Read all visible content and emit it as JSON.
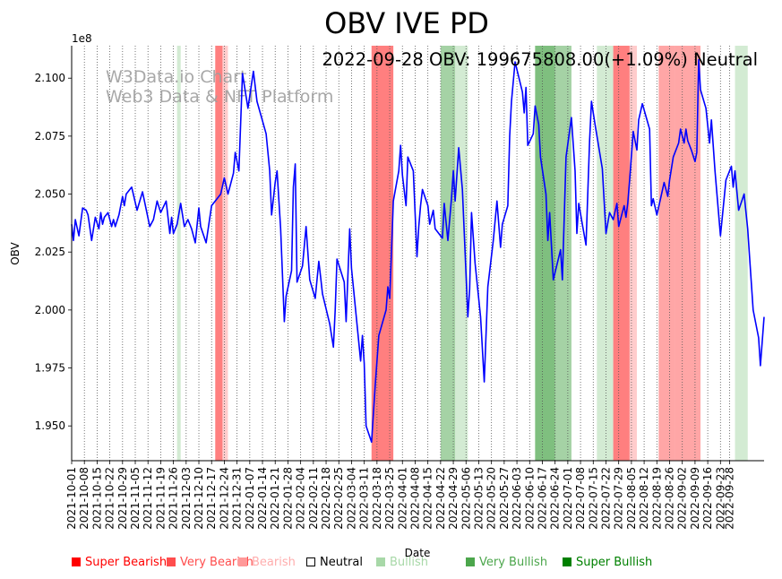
{
  "chart_data": {
    "type": "line",
    "title": "OBV IVE PD",
    "annotation": "2022-09-28 OBV: 199675808.00(+1.09%) Neutral",
    "watermark": [
      "W3Data.io Chart",
      "Web3 Data & NFT Platform"
    ],
    "xlabel": "Date",
    "ylabel": "OBV",
    "y_multiplier_label": "1e8",
    "ylim": [
      1.935,
      2.114
    ],
    "yticks": [
      1.95,
      1.975,
      2.0,
      2.025,
      2.05,
      2.075,
      2.1
    ],
    "ytick_labels": [
      "1.950",
      "1.975",
      "2.000",
      "2.025",
      "2.050",
      "2.075",
      "2.100"
    ],
    "x_start": "2021-10-01",
    "x_end": "2022-09-28",
    "x_tick_labels": [
      "2021-10-01",
      "2021-10-08",
      "2021-10-15",
      "2021-10-22",
      "2021-10-29",
      "2021-11-05",
      "2021-11-12",
      "2021-11-19",
      "2021-11-26",
      "2021-12-03",
      "2021-12-10",
      "2021-12-17",
      "2021-12-24",
      "2021-12-31",
      "2022-01-07",
      "2022-01-14",
      "2022-01-21",
      "2022-01-28",
      "2022-02-04",
      "2022-02-11",
      "2022-02-18",
      "2022-02-25",
      "2022-03-04",
      "2022-03-11",
      "2022-03-18",
      "2022-03-25",
      "2022-04-01",
      "2022-04-08",
      "2022-04-15",
      "2022-04-22",
      "2022-04-29",
      "2022-05-06",
      "2022-05-13",
      "2022-05-20",
      "2022-05-27",
      "2022-06-03",
      "2022-06-10",
      "2022-06-17",
      "2022-06-24",
      "2022-07-01",
      "2022-07-08",
      "2022-07-15",
      "2022-07-22",
      "2022-07-29",
      "2022-08-05",
      "2022-08-12",
      "2022-08-19",
      "2022-08-26",
      "2022-09-02",
      "2022-09-09",
      "2022-09-16",
      "2022-09-23",
      "2022-09-28"
    ],
    "series": [
      {
        "name": "OBV (x1e8)",
        "color": "#0000ff",
        "points": [
          [
            "2021-10-01",
            2.037
          ],
          [
            "2021-10-02",
            2.03
          ],
          [
            "2021-10-03",
            2.039
          ],
          [
            "2021-10-05",
            2.032
          ],
          [
            "2021-10-07",
            2.044
          ],
          [
            "2021-10-09",
            2.043
          ],
          [
            "2021-10-10",
            2.041
          ],
          [
            "2021-10-12",
            2.03
          ],
          [
            "2021-10-14",
            2.04
          ],
          [
            "2021-10-16",
            2.035
          ],
          [
            "2021-10-17",
            2.042
          ],
          [
            "2021-10-18",
            2.037
          ],
          [
            "2021-10-19",
            2.04
          ],
          [
            "2021-10-21",
            2.042
          ],
          [
            "2021-10-23",
            2.036
          ],
          [
            "2021-10-24",
            2.039
          ],
          [
            "2021-10-25",
            2.036
          ],
          [
            "2021-10-27",
            2.041
          ],
          [
            "2021-10-29",
            2.049
          ],
          [
            "2021-10-30",
            2.045
          ],
          [
            "2021-10-31",
            2.05
          ],
          [
            "2021-11-03",
            2.053
          ],
          [
            "2021-11-06",
            2.043
          ],
          [
            "2021-11-09",
            2.051
          ],
          [
            "2021-11-13",
            2.036
          ],
          [
            "2021-11-15",
            2.039
          ],
          [
            "2021-11-17",
            2.047
          ],
          [
            "2021-11-19",
            2.042
          ],
          [
            "2021-11-22",
            2.047
          ],
          [
            "2021-11-24",
            2.033
          ],
          [
            "2021-11-25",
            2.04
          ],
          [
            "2021-11-26",
            2.033
          ],
          [
            "2021-11-28",
            2.037
          ],
          [
            "2021-11-30",
            2.046
          ],
          [
            "2021-12-02",
            2.036
          ],
          [
            "2021-12-04",
            2.039
          ],
          [
            "2021-12-06",
            2.035
          ],
          [
            "2021-12-08",
            2.029
          ],
          [
            "2021-12-10",
            2.044
          ],
          [
            "2021-12-11",
            2.036
          ],
          [
            "2021-12-14",
            2.029
          ],
          [
            "2021-12-17",
            2.045
          ],
          [
            "2021-12-20",
            2.048
          ],
          [
            "2021-12-22",
            2.05
          ],
          [
            "2021-12-24",
            2.057
          ],
          [
            "2021-12-26",
            2.05
          ],
          [
            "2021-12-29",
            2.059
          ],
          [
            "2021-12-30",
            2.068
          ],
          [
            "2022-01-01",
            2.06
          ],
          [
            "2022-01-03",
            2.102
          ],
          [
            "2022-01-06",
            2.087
          ],
          [
            "2022-01-09",
            2.103
          ],
          [
            "2022-01-11",
            2.09
          ],
          [
            "2022-01-16",
            2.076
          ],
          [
            "2022-01-18",
            2.06
          ],
          [
            "2022-01-19",
            2.041
          ],
          [
            "2022-01-21",
            2.055
          ],
          [
            "2022-01-22",
            2.06
          ],
          [
            "2022-01-24",
            2.035
          ],
          [
            "2022-01-26",
            1.995
          ],
          [
            "2022-01-27",
            2.006
          ],
          [
            "2022-01-30",
            2.017
          ],
          [
            "2022-01-31",
            2.053
          ],
          [
            "2022-02-01",
            2.063
          ],
          [
            "2022-02-02",
            2.012
          ],
          [
            "2022-02-05",
            2.019
          ],
          [
            "2022-02-07",
            2.036
          ],
          [
            "2022-02-09",
            2.013
          ],
          [
            "2022-02-12",
            2.005
          ],
          [
            "2022-02-14",
            2.021
          ],
          [
            "2022-02-15",
            2.014
          ],
          [
            "2022-02-16",
            2.007
          ],
          [
            "2022-02-20",
            1.994
          ],
          [
            "2022-02-22",
            1.984
          ],
          [
            "2022-02-23",
            2.0
          ],
          [
            "2022-02-24",
            2.022
          ],
          [
            "2022-02-28",
            2.012
          ],
          [
            "2022-03-01",
            1.995
          ],
          [
            "2022-03-03",
            2.035
          ],
          [
            "2022-03-04",
            2.018
          ],
          [
            "2022-03-09",
            1.978
          ],
          [
            "2022-03-10",
            1.989
          ],
          [
            "2022-03-11",
            1.977
          ],
          [
            "2022-03-12",
            1.95
          ],
          [
            "2022-03-15",
            1.943
          ],
          [
            "2022-03-17",
            1.967
          ],
          [
            "2022-03-19",
            1.989
          ],
          [
            "2022-03-23",
            2.0
          ],
          [
            "2022-03-24",
            2.01
          ],
          [
            "2022-03-25",
            2.005
          ],
          [
            "2022-03-27",
            2.047
          ],
          [
            "2022-03-30",
            2.06
          ],
          [
            "2022-03-31",
            2.071
          ],
          [
            "2022-04-01",
            2.058
          ],
          [
            "2022-04-03",
            2.045
          ],
          [
            "2022-04-04",
            2.066
          ],
          [
            "2022-04-07",
            2.06
          ],
          [
            "2022-04-09",
            2.023
          ],
          [
            "2022-04-10",
            2.036
          ],
          [
            "2022-04-11",
            2.045
          ],
          [
            "2022-04-12",
            2.052
          ],
          [
            "2022-04-15",
            2.045
          ],
          [
            "2022-04-16",
            2.037
          ],
          [
            "2022-04-18",
            2.043
          ],
          [
            "2022-04-19",
            2.035
          ],
          [
            "2022-04-23",
            2.031
          ],
          [
            "2022-04-24",
            2.046
          ],
          [
            "2022-04-26",
            2.03
          ],
          [
            "2022-04-28",
            2.048
          ],
          [
            "2022-04-29",
            2.06
          ],
          [
            "2022-04-30",
            2.047
          ],
          [
            "2022-05-02",
            2.07
          ],
          [
            "2022-05-04",
            2.052
          ],
          [
            "2022-05-07",
            1.997
          ],
          [
            "2022-05-08",
            2.009
          ],
          [
            "2022-05-09",
            2.042
          ],
          [
            "2022-05-11",
            2.02
          ],
          [
            "2022-05-14",
            1.997
          ],
          [
            "2022-05-16",
            1.969
          ],
          [
            "2022-05-18",
            2.01
          ],
          [
            "2022-05-21",
            2.03
          ],
          [
            "2022-05-23",
            2.047
          ],
          [
            "2022-05-25",
            2.027
          ],
          [
            "2022-05-26",
            2.037
          ],
          [
            "2022-05-29",
            2.045
          ],
          [
            "2022-05-30",
            2.075
          ],
          [
            "2022-05-31",
            2.09
          ],
          [
            "2022-06-02",
            2.107
          ],
          [
            "2022-06-06",
            2.094
          ],
          [
            "2022-06-07",
            2.085
          ],
          [
            "2022-06-08",
            2.096
          ],
          [
            "2022-06-09",
            2.071
          ],
          [
            "2022-06-12",
            2.076
          ],
          [
            "2022-06-13",
            2.088
          ],
          [
            "2022-06-15",
            2.08
          ],
          [
            "2022-06-16",
            2.066
          ],
          [
            "2022-06-19",
            2.05
          ],
          [
            "2022-06-20",
            2.03
          ],
          [
            "2022-06-21",
            2.042
          ],
          [
            "2022-06-23",
            2.013
          ],
          [
            "2022-06-27",
            2.026
          ],
          [
            "2022-06-28",
            2.013
          ],
          [
            "2022-06-30",
            2.066
          ],
          [
            "2022-07-03",
            2.083
          ],
          [
            "2022-07-05",
            2.06
          ],
          [
            "2022-07-06",
            2.033
          ],
          [
            "2022-07-07",
            2.046
          ],
          [
            "2022-07-09",
            2.037
          ],
          [
            "2022-07-11",
            2.028
          ],
          [
            "2022-07-13",
            2.073
          ],
          [
            "2022-07-14",
            2.09
          ],
          [
            "2022-07-16",
            2.08
          ],
          [
            "2022-07-20",
            2.061
          ],
          [
            "2022-07-22",
            2.033
          ],
          [
            "2022-07-24",
            2.042
          ],
          [
            "2022-07-26",
            2.039
          ],
          [
            "2022-07-28",
            2.046
          ],
          [
            "2022-07-29",
            2.036
          ],
          [
            "2022-07-31",
            2.042
          ],
          [
            "2022-08-01",
            2.045
          ],
          [
            "2022-08-02",
            2.04
          ],
          [
            "2022-08-03",
            2.046
          ],
          [
            "2022-08-04",
            2.056
          ],
          [
            "2022-08-06",
            2.077
          ],
          [
            "2022-08-08",
            2.069
          ],
          [
            "2022-08-09",
            2.082
          ],
          [
            "2022-08-11",
            2.089
          ],
          [
            "2022-08-15",
            2.078
          ],
          [
            "2022-08-16",
            2.045
          ],
          [
            "2022-08-17",
            2.048
          ],
          [
            "2022-08-19",
            2.041
          ],
          [
            "2022-08-21",
            2.048
          ],
          [
            "2022-08-23",
            2.055
          ],
          [
            "2022-08-25",
            2.049
          ],
          [
            "2022-08-26",
            2.056
          ],
          [
            "2022-08-28",
            2.066
          ],
          [
            "2022-08-31",
            2.072
          ],
          [
            "2022-09-01",
            2.078
          ],
          [
            "2022-09-03",
            2.072
          ],
          [
            "2022-09-04",
            2.078
          ],
          [
            "2022-09-05",
            2.073
          ],
          [
            "2022-09-07",
            2.069
          ],
          [
            "2022-09-09",
            2.064
          ],
          [
            "2022-09-10",
            2.068
          ],
          [
            "2022-09-11",
            2.108
          ],
          [
            "2022-09-12",
            2.095
          ],
          [
            "2022-09-15",
            2.087
          ],
          [
            "2022-09-17",
            2.072
          ],
          [
            "2022-09-18",
            2.082
          ],
          [
            "2022-09-20",
            2.06
          ],
          [
            "2022-09-23",
            2.032
          ],
          [
            "2022-09-26",
            2.056
          ],
          [
            "2022-09-29",
            2.062
          ],
          [
            "2022-09-30",
            2.053
          ],
          [
            "2022-10-01",
            2.06
          ],
          [
            "2022-10-03",
            2.043
          ],
          [
            "2022-10-06",
            2.05
          ],
          [
            "2022-10-08",
            2.035
          ],
          [
            "2022-10-11",
            2.0
          ],
          [
            "2022-10-14",
            1.988
          ],
          [
            "2022-10-15",
            1.976
          ],
          [
            "2022-10-17",
            1.997
          ]
        ]
      }
    ],
    "x_plot_end": "2022-10-17",
    "regions": [
      {
        "start": "2021-11-28",
        "end": "2021-11-30",
        "sentiment": "Bullish"
      },
      {
        "start": "2021-12-19",
        "end": "2021-12-23",
        "sentiment": "Super Bearish"
      },
      {
        "start": "2021-12-23",
        "end": "2021-12-26",
        "sentiment": "Bearish"
      },
      {
        "start": "2022-03-15",
        "end": "2022-03-27",
        "sentiment": "Super Bearish"
      },
      {
        "start": "2022-04-22",
        "end": "2022-04-30",
        "sentiment": "Very Bullish"
      },
      {
        "start": "2022-04-30",
        "end": "2022-05-07",
        "sentiment": "Bullish"
      },
      {
        "start": "2022-06-13",
        "end": "2022-06-24",
        "sentiment": "Super Bullish"
      },
      {
        "start": "2022-06-24",
        "end": "2022-07-03",
        "sentiment": "Very Bullish"
      },
      {
        "start": "2022-07-17",
        "end": "2022-07-26",
        "sentiment": "Bullish"
      },
      {
        "start": "2022-07-26",
        "end": "2022-08-04",
        "sentiment": "Super Bearish"
      },
      {
        "start": "2022-08-04",
        "end": "2022-08-08",
        "sentiment": "Bearish"
      },
      {
        "start": "2022-08-20",
        "end": "2022-08-29",
        "sentiment": "Very Bearish"
      },
      {
        "start": "2022-08-29",
        "end": "2022-09-12",
        "sentiment": "Very Bearish"
      },
      {
        "start": "2022-10-01",
        "end": "2022-10-08",
        "sentiment": "Bullish"
      }
    ],
    "legend": [
      {
        "label": "Super Bearish",
        "color": "#ff0000",
        "text_color": "#ff0000"
      },
      {
        "label": "Very Bearish",
        "color": "#ff4d4d",
        "text_color": "#ff4d4d"
      },
      {
        "label": "Bearish",
        "color": "#ff9999",
        "text_color": "#ffadad"
      },
      {
        "label": "Neutral",
        "color": "#ffffff",
        "text_color": "#000000"
      },
      {
        "label": "Bullish",
        "color": "#a8d8a8",
        "text_color": "#a8d8a8"
      },
      {
        "label": "Very Bullish",
        "color": "#4ca64c",
        "text_color": "#4ca64c"
      },
      {
        "label": "Super Bullish",
        "color": "#008000",
        "text_color": "#008000"
      }
    ],
    "region_colors": {
      "Super Bearish": "#ff0000",
      "Very Bearish": "#ff4d4d",
      "Bearish": "#ff9999",
      "Bullish": "#a8d8a8",
      "Very Bullish": "#4ca64c",
      "Super Bullish": "#008000"
    }
  }
}
